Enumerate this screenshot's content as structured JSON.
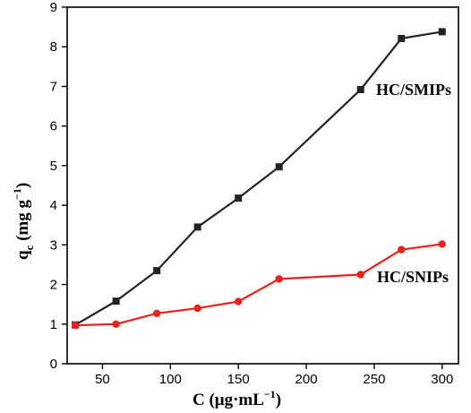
{
  "chart_data": {
    "type": "line",
    "xlabel": "C (μg·mL",
    "xlabel_sup": "−1",
    "xlabel_close": ")",
    "ylabel": "q",
    "ylabel_sub": "c",
    "ylabel_units": " (mg g",
    "ylabel_sup": "−1",
    "ylabel_close": ")",
    "xlim": [
      24,
      312
    ],
    "ylim": [
      0,
      9
    ],
    "xticks": [
      50,
      100,
      150,
      200,
      250,
      300
    ],
    "yticks": [
      0,
      1,
      2,
      3,
      4,
      5,
      6,
      7,
      8,
      9
    ],
    "grid": false,
    "legend": "none",
    "series": [
      {
        "name": "HC/SMIPs",
        "color": "#222222",
        "marker": "square",
        "x": [
          30,
          60,
          90,
          120,
          150,
          180,
          240,
          270,
          300
        ],
        "y": [
          0.98,
          1.58,
          2.35,
          3.45,
          4.18,
          4.97,
          6.92,
          8.21,
          8.38
        ]
      },
      {
        "name": "HC/SNIPs",
        "color": "#e8231f",
        "marker": "circle",
        "x": [
          30,
          60,
          90,
          120,
          150,
          180,
          240,
          270,
          300
        ],
        "y": [
          0.97,
          1.0,
          1.27,
          1.4,
          1.57,
          2.14,
          2.25,
          2.88,
          3.02
        ]
      }
    ]
  }
}
